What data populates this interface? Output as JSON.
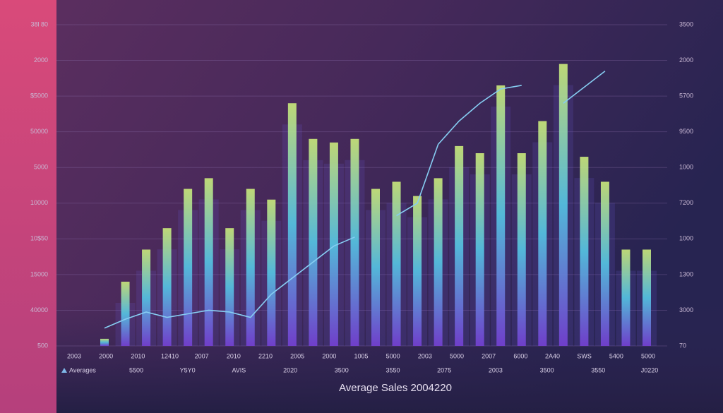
{
  "chart_data": {
    "type": "bar",
    "title": "Average Sales 2004220",
    "categories": [
      null,
      null,
      null,
      null,
      null,
      null,
      null,
      null,
      null,
      null,
      null,
      null,
      null,
      null,
      null,
      null,
      null,
      null,
      null,
      null,
      null,
      null,
      null,
      null,
      null,
      null,
      null
    ],
    "series": [
      {
        "type": "bar",
        "color": "#c8e67a",
        "values": [
          0.2,
          1.8,
          2.7,
          3.3,
          4.4,
          4.7,
          3.3,
          4.4,
          4.1,
          6.8,
          5.8,
          5.7,
          5.8,
          4.4,
          4.6,
          4.2,
          4.7,
          5.6,
          5.4,
          7.3,
          5.4,
          6.3,
          7.9,
          5.3,
          4.6,
          2.7,
          2.7
        ]
      },
      {
        "type": "line",
        "name": "Averages",
        "color": "#86cdf2",
        "values": [
          0.5,
          0.75,
          0.95,
          0.8,
          0.9,
          1.0,
          0.95,
          0.8,
          1.45,
          1.9,
          2.35,
          2.8,
          3.05,
          null,
          3.65,
          4.0,
          5.65,
          6.3,
          6.8,
          7.2,
          7.3,
          null,
          6.8,
          7.25,
          7.7,
          null,
          null
        ]
      }
    ],
    "x_labels": [
      "2003",
      "2000",
      "2010",
      "12410",
      "2007",
      "2010",
      "2210",
      "2005",
      "2000",
      "1005",
      "5000",
      "2003",
      "5000",
      "2007",
      "6000",
      "2A40",
      "SWS",
      "5400",
      "5000"
    ],
    "x_labels_2": [
      "5500",
      "Y5Y0",
      "AVIS",
      "2020",
      "3500",
      "3550",
      "2075",
      "2003",
      "3500",
      "3550",
      "J0220"
    ],
    "ylim": [
      0,
      9
    ],
    "yticks": [
      {
        "value": 0,
        "label": "500"
      },
      {
        "value": 1,
        "label": "40000"
      },
      {
        "value": 2,
        "label": "15000"
      },
      {
        "value": 3,
        "label": "10$50"
      },
      {
        "value": 4,
        "label": "10000"
      },
      {
        "value": 5,
        "label": "5000"
      },
      {
        "value": 6,
        "label": "50000"
      },
      {
        "value": 7,
        "label": "$5000"
      },
      {
        "value": 8,
        "label": "2000"
      },
      {
        "value": 9,
        "label": "38l 80"
      }
    ],
    "y2lim": [
      0,
      9
    ],
    "y2ticks": [
      {
        "value": 0,
        "label": "70"
      },
      {
        "value": 1,
        "label": "3000"
      },
      {
        "value": 2,
        "label": "1300"
      },
      {
        "value": 3,
        "label": "1000"
      },
      {
        "value": 4,
        "label": "7200"
      },
      {
        "value": 5,
        "label": "1000"
      },
      {
        "value": 6,
        "label": "9500"
      },
      {
        "value": 7,
        "label": "5700"
      },
      {
        "value": 8,
        "label": "2000"
      },
      {
        "value": 9,
        "label": "3500"
      }
    ],
    "grid": true
  }
}
